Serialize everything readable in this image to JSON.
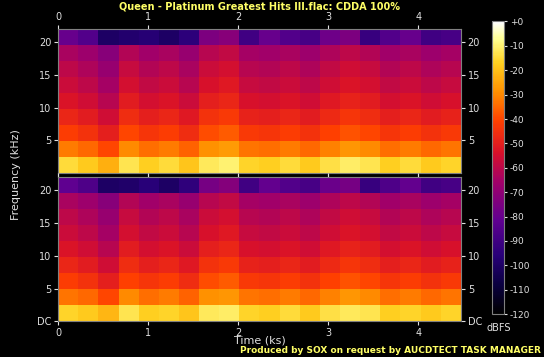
{
  "chart_data": [
    {
      "type": "heatmap",
      "title": "Queen - Platinum Greatest Hits III.flac: CDDA 100%",
      "ylabel": "Frequency (kHz)",
      "xlim": [
        0,
        4.47
      ],
      "ylim": [
        0,
        22.05
      ],
      "xticks": [
        0,
        1,
        2,
        3,
        4
      ],
      "yticks": [
        5,
        10,
        15,
        20
      ],
      "cells": [
        [
          -15,
          -18,
          -23,
          -13,
          -17,
          -15,
          -19,
          -12,
          -10,
          -16,
          -17,
          -15,
          -18,
          -14,
          -11,
          -13,
          -17,
          -15,
          -18,
          -16
        ],
        [
          -32,
          -35,
          -40,
          -30,
          -34,
          -32,
          -36,
          -29,
          -27,
          -33,
          -34,
          -32,
          -35,
          -31,
          -28,
          -30,
          -34,
          -32,
          -35,
          -33
        ],
        [
          -42,
          -45,
          -50,
          -40,
          -44,
          -42,
          -46,
          -39,
          -37,
          -43,
          -44,
          -42,
          -45,
          -41,
          -38,
          -40,
          -44,
          -42,
          -45,
          -43
        ],
        [
          -48,
          -51,
          -56,
          -46,
          -50,
          -48,
          -52,
          -45,
          -43,
          -49,
          -50,
          -48,
          -51,
          -47,
          -44,
          -46,
          -50,
          -48,
          -51,
          -49
        ],
        [
          -53,
          -56,
          -61,
          -51,
          -55,
          -53,
          -57,
          -50,
          -48,
          -54,
          -55,
          -53,
          -56,
          -52,
          -49,
          -51,
          -55,
          -53,
          -56,
          -54
        ],
        [
          -57,
          -60,
          -65,
          -55,
          -59,
          -57,
          -61,
          -54,
          -52,
          -58,
          -59,
          -57,
          -60,
          -56,
          -53,
          -55,
          -59,
          -57,
          -60,
          -58
        ],
        [
          -60,
          -63,
          -68,
          -58,
          -62,
          -60,
          -64,
          -57,
          -55,
          -61,
          -62,
          -60,
          -63,
          -59,
          -56,
          -58,
          -62,
          -60,
          -63,
          -61
        ],
        [
          -64,
          -67,
          -72,
          -62,
          -66,
          -64,
          -68,
          -61,
          -59,
          -65,
          -66,
          -64,
          -67,
          -63,
          -60,
          -62,
          -66,
          -64,
          -67,
          -65
        ],
        [
          -80,
          -85,
          -100,
          -98,
          -97,
          -100,
          -95,
          -75,
          -72,
          -90,
          -80,
          -85,
          -88,
          -78,
          -75,
          -92,
          -85,
          -80,
          -90,
          -88
        ]
      ]
    },
    {
      "type": "heatmap",
      "xlabel": "Time (ks)",
      "xlim": [
        0,
        4.47
      ],
      "ylim": [
        0,
        22.05
      ],
      "xticks": [
        0,
        1,
        2,
        3,
        4
      ],
      "yticks": [
        {
          "value": 0,
          "label": "DC"
        },
        5,
        10,
        15,
        20
      ],
      "cells": [
        [
          -16,
          -18,
          -22,
          -13,
          -17,
          -16,
          -19,
          -12,
          -11,
          -16,
          -17,
          -15,
          -18,
          -14,
          -12,
          -13,
          -17,
          -16,
          -18,
          -16
        ],
        [
          -33,
          -35,
          -40,
          -30,
          -34,
          -32,
          -36,
          -29,
          -28,
          -33,
          -34,
          -32,
          -35,
          -31,
          -28,
          -30,
          -34,
          -32,
          -35,
          -33
        ],
        [
          -42,
          -45,
          -50,
          -41,
          -44,
          -42,
          -46,
          -39,
          -37,
          -43,
          -44,
          -42,
          -45,
          -41,
          -38,
          -40,
          -44,
          -42,
          -45,
          -43
        ],
        [
          -48,
          -51,
          -56,
          -46,
          -50,
          -48,
          -52,
          -45,
          -43,
          -49,
          -50,
          -48,
          -51,
          -47,
          -44,
          -46,
          -50,
          -48,
          -51,
          -49
        ],
        [
          -53,
          -56,
          -61,
          -51,
          -55,
          -53,
          -57,
          -50,
          -48,
          -54,
          -55,
          -53,
          -56,
          -52,
          -49,
          -51,
          -55,
          -53,
          -56,
          -54
        ],
        [
          -57,
          -60,
          -65,
          -55,
          -59,
          -57,
          -61,
          -54,
          -52,
          -58,
          -59,
          -57,
          -60,
          -56,
          -53,
          -55,
          -59,
          -57,
          -60,
          -58
        ],
        [
          -60,
          -63,
          -68,
          -58,
          -62,
          -60,
          -64,
          -57,
          -55,
          -61,
          -62,
          -60,
          -63,
          -59,
          -56,
          -58,
          -62,
          -60,
          -63,
          -61
        ],
        [
          -64,
          -67,
          -72,
          -62,
          -66,
          -64,
          -68,
          -61,
          -59,
          -65,
          -66,
          -64,
          -67,
          -63,
          -60,
          -62,
          -66,
          -64,
          -67,
          -65
        ],
        [
          -82,
          -86,
          -100,
          -99,
          -96,
          -100,
          -94,
          -76,
          -73,
          -90,
          -81,
          -85,
          -88,
          -79,
          -76,
          -92,
          -86,
          -81,
          -90,
          -88
        ]
      ],
      "zlim": [
        -120,
        0
      ],
      "zticks": [
        {
          "value": 0,
          "label": "+0"
        },
        -10,
        -20,
        -30,
        -40,
        -50,
        -60,
        -70,
        -80,
        -90,
        -100,
        -110,
        -120
      ],
      "zlabel": "dBFS",
      "annotations": [
        "Produced by SOX on request by AUCDTECT TASK MANAGER"
      ]
    }
  ]
}
